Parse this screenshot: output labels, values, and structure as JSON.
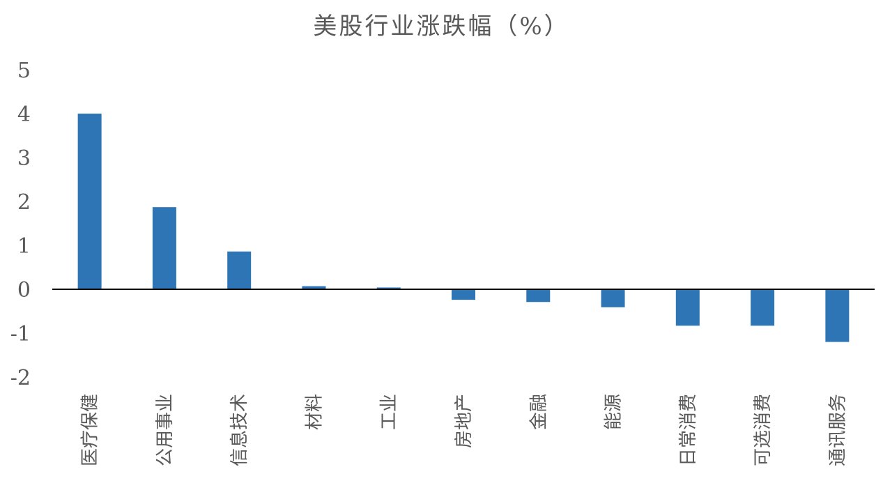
{
  "chart_data": {
    "type": "bar",
    "title": "美股行业涨跌幅（%）",
    "categories": [
      "医疗保健",
      "公用事业",
      "信息技术",
      "材料",
      "工业",
      "房地产",
      "金融",
      "能源",
      "日常消费",
      "可选消费",
      "通讯服务"
    ],
    "values": [
      4.0,
      1.87,
      0.86,
      0.07,
      0.04,
      -0.24,
      -0.29,
      -0.41,
      -0.83,
      -0.83,
      -1.2
    ],
    "ylim": [
      -2,
      5
    ],
    "yticks": [
      5,
      4,
      3,
      2,
      1,
      0,
      -1,
      -2
    ],
    "xlabel": "",
    "ylabel": "",
    "grid": false,
    "legend": "none",
    "bar_color": "#2E75B6"
  }
}
